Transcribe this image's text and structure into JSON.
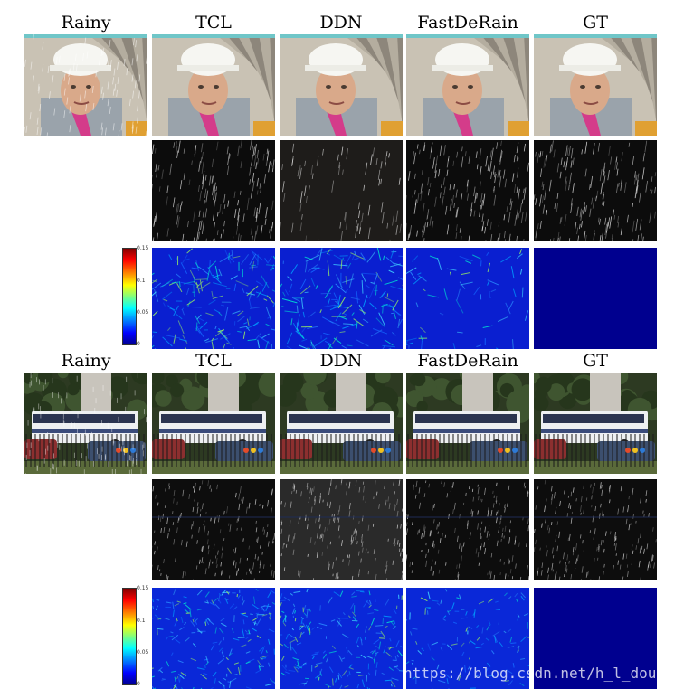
{
  "block1": {
    "labels": [
      "Rainy",
      "TCL",
      "DDN",
      "FastDeRain",
      "GT"
    ],
    "colorbar_ticks": [
      "0.15",
      "0.1",
      "0.05",
      "0"
    ]
  },
  "block2": {
    "labels": [
      "Rainy",
      "TCL",
      "DDN",
      "FastDeRain",
      "GT"
    ],
    "colorbar_ticks": [
      "0.15",
      "0.1",
      "0.05",
      "0"
    ]
  },
  "watermark": "https://blog.csdn.net/h_l_dou",
  "colors": {
    "error_map_bg": "#0a1fd0",
    "gt_error_map": "#00008f",
    "rain_residual_bg": "#111111"
  }
}
